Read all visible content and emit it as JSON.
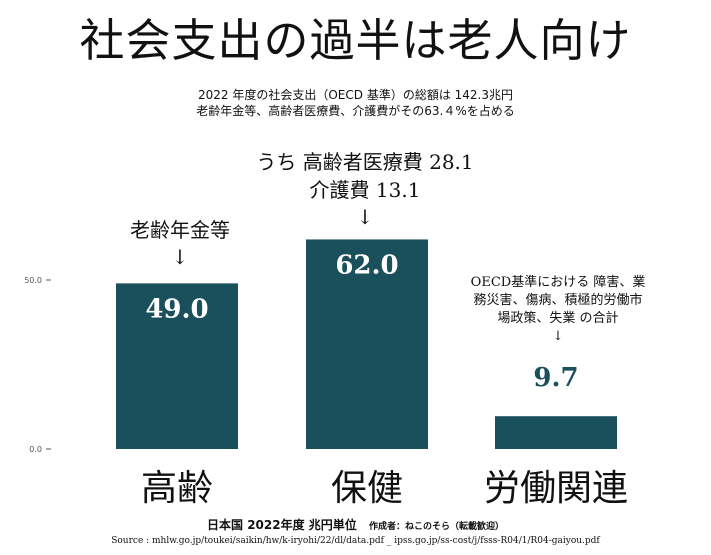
{
  "title": "社会支出の過半は老人向け",
  "subtitle_lines": [
    "2022 年度の社会支出（OECD 基準）の総額は 142.3兆円",
    "老齢年金等、高齢者医療費、介護費がその63.４%を占める"
  ],
  "annotations": {
    "health_line1": "うち 高齢者医療費 28.1",
    "health_line2": "介護費 13.1",
    "health_arrow": "↓",
    "elderly_label": "老齢年金等",
    "elderly_arrow": "↓",
    "labor_line1": "OECD基準における 障害、業",
    "labor_line2": "務災害、傷病、積極的労働市",
    "labor_line3": "場政策、失業 の合計",
    "labor_arrow": "↓"
  },
  "footer": {
    "main": "日本国 2022年度 兆円単位",
    "author": "作成者：ねこのそら（転載歓迎）",
    "source": "Source : mhlw.go.jp/toukei/saikin/hw/k-iryohi/22/dl/data.pdf _ ipss.go.jp/ss-cost/j/fsss-R04/1/R04-gaiyou.pdf"
  },
  "colors": {
    "bar": "#1a4f5c",
    "label_on_bar": "#ffffff",
    "label_above_bar": "#1a4f5c",
    "axis_text": "#555555"
  },
  "chart_data": {
    "type": "bar",
    "categories": [
      "高齢",
      "保健",
      "労働関連"
    ],
    "values": [
      49.0,
      62.0,
      9.7
    ],
    "data_labels": [
      "49.0",
      "62.0",
      "9.7"
    ],
    "yticks": [
      0,
      50
    ],
    "ytick_labels": [
      "0.0",
      "50.0"
    ],
    "ylim": [
      0,
      66
    ],
    "grid": false,
    "legend": "none"
  }
}
